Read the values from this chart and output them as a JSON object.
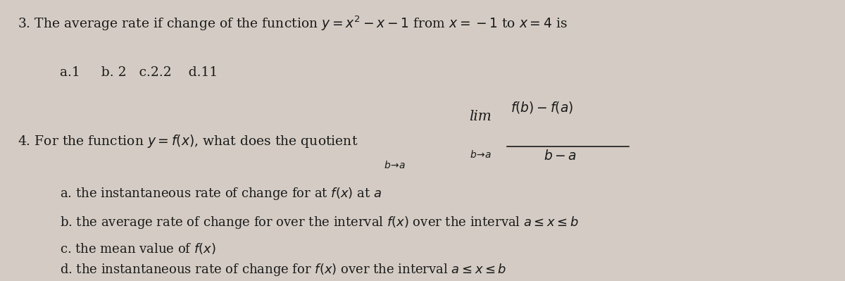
{
  "bg_color": "#d4ccc4",
  "text_color": "#1a1a1a",
  "fig_width": 12.0,
  "fig_height": 3.99,
  "q3_line1": "3. The average rate if change of the function $y = x^2 - x - 1$ from $x = -1$ to $x = 4$ is",
  "q3_line2": "a.1     b. 2   c.2.2    d.11",
  "q4_intro": "4. For the function $y = f(x)$, what does the quotient",
  "lim_label": "lim",
  "lim_sub": "$b\\!\\to\\!a$",
  "frac_num": "$f(b)-f(a)$",
  "frac_den": "$b-a$",
  "q4_a": "a. the instantaneous rate of change for at $f(x)$ at $a$",
  "q4_b": "b. the average rate of change for over the interval $f(x)$ over the interval $a \\leq x \\leq b$",
  "q4_c": "c. the mean value of $f(x)$",
  "q4_d": "d. the instantaneous rate of change for $f(x)$ over the interval $a \\leq x \\leq b$"
}
